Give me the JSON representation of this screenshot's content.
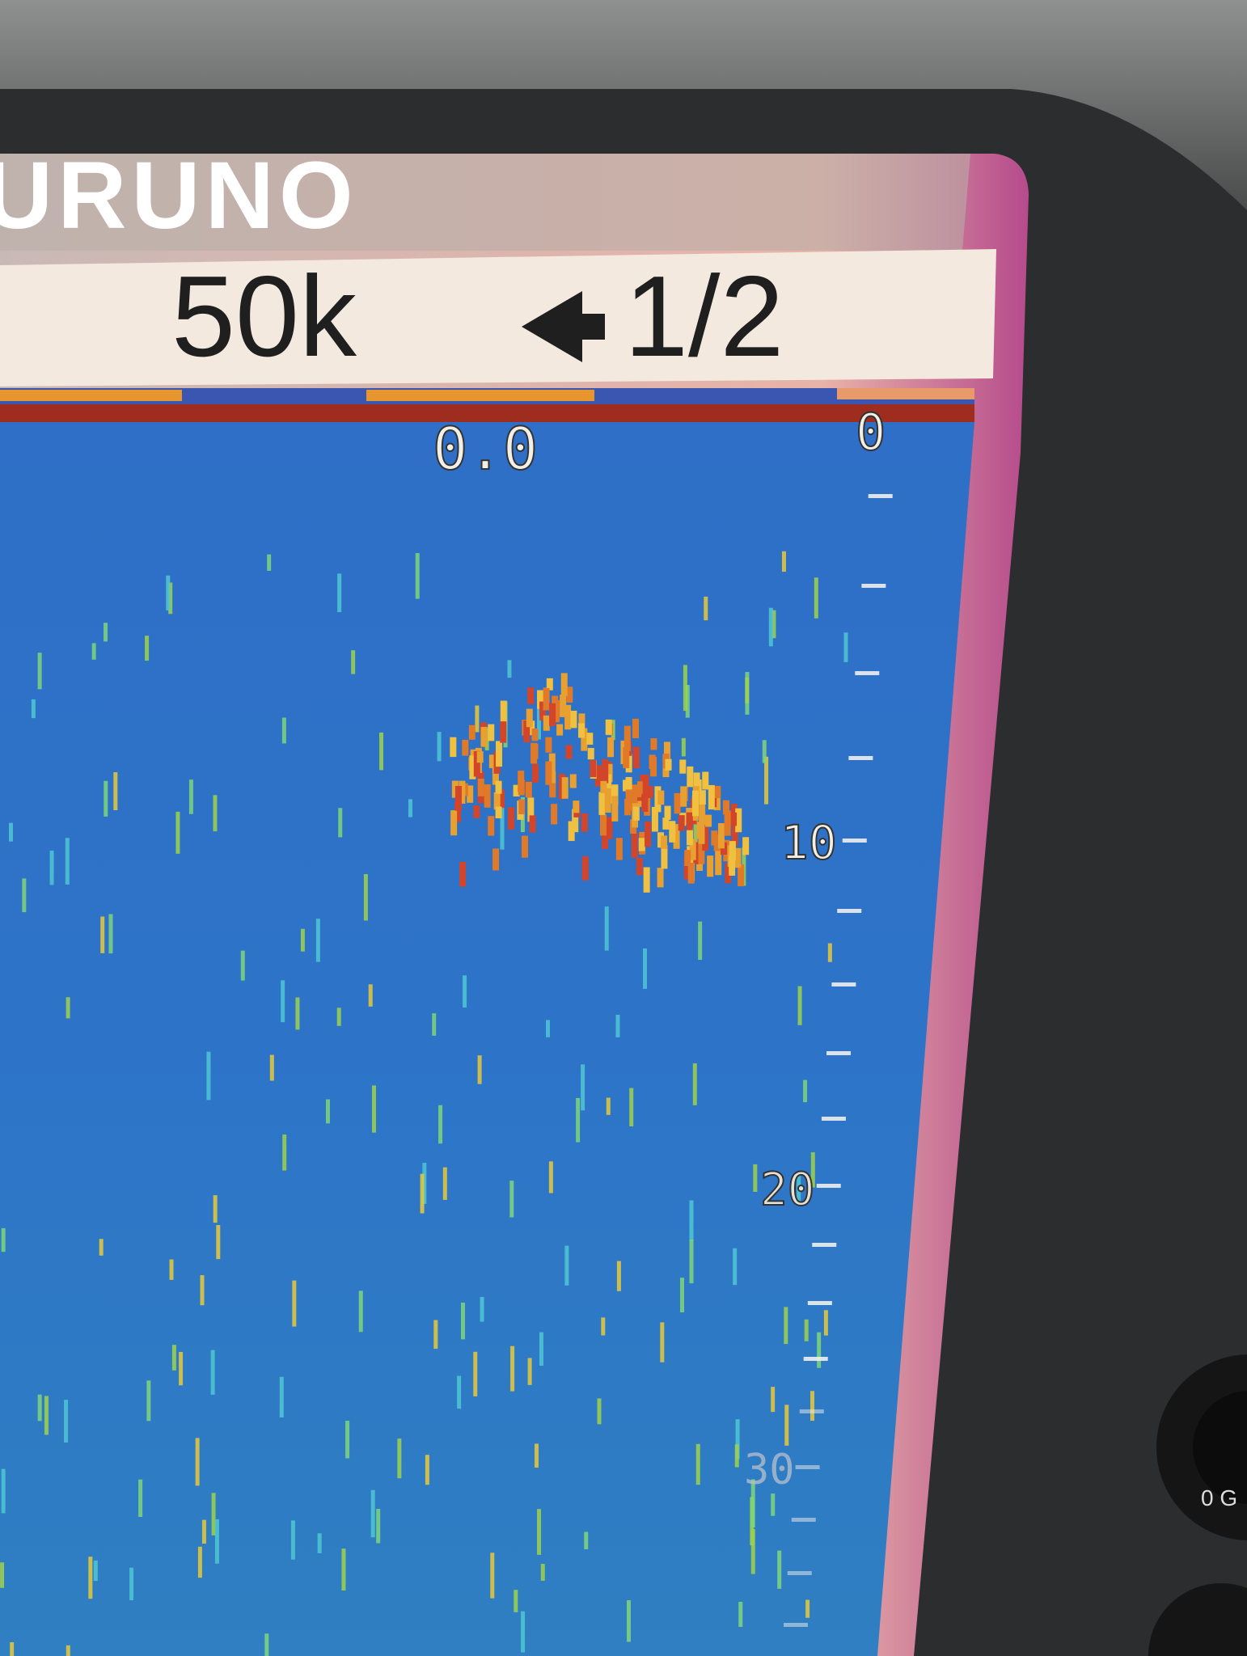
{
  "brand": "URUNO",
  "status_bar": {
    "frequency": "50k",
    "range": "1/2"
  },
  "readout": "0.0",
  "depth_scale": [
    "0",
    "10",
    "20",
    "30"
  ],
  "knob_label": "0 G"
}
